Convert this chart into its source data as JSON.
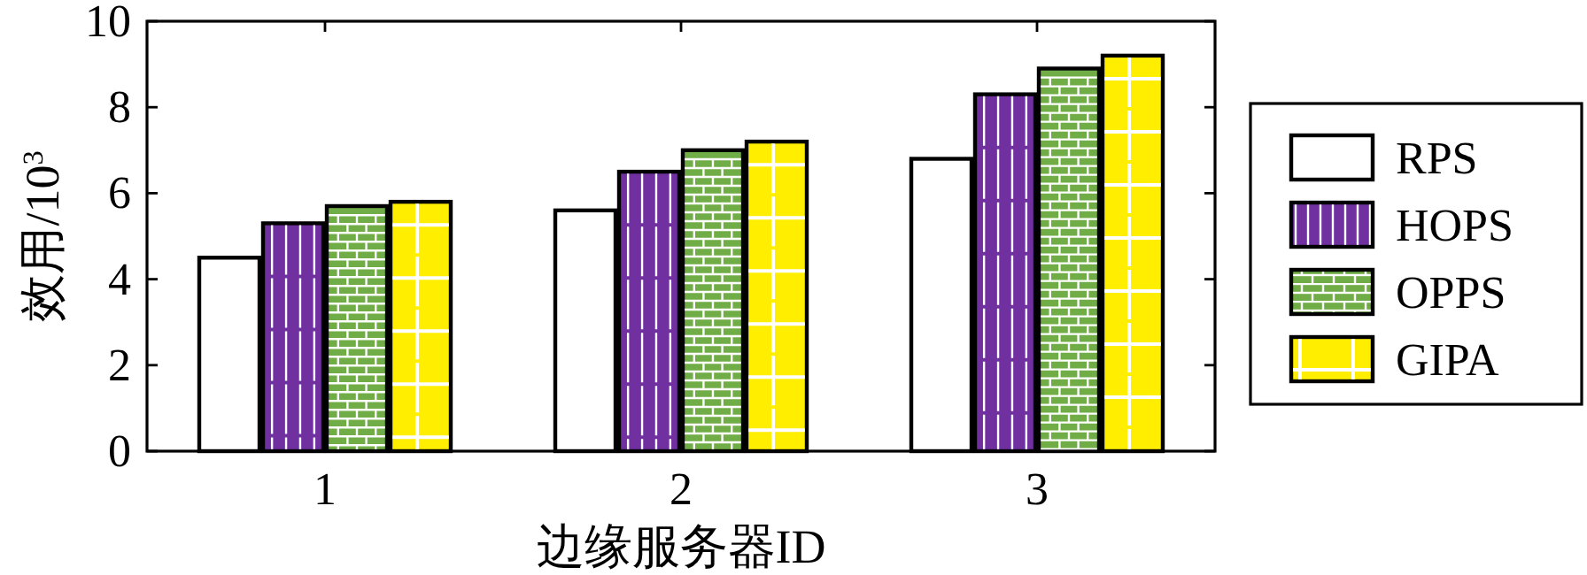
{
  "chart_data": {
    "type": "bar",
    "xlabel": "边缘服务器ID",
    "ylabel": "效用/10$^{3}$",
    "categories": [
      "1",
      "2",
      "3"
    ],
    "series": [
      {
        "name": "RPS",
        "color": "#ffffff",
        "values": [
          4.5,
          5.6,
          6.8
        ]
      },
      {
        "name": "HOPS",
        "color": "#7030a0",
        "values": [
          5.3,
          6.5,
          8.3
        ]
      },
      {
        "name": "OPPS",
        "color": "#70ad47",
        "values": [
          5.7,
          7.0,
          8.9
        ]
      },
      {
        "name": "GIPA",
        "color": "#ffee00",
        "values": [
          5.8,
          7.2,
          9.2
        ]
      }
    ],
    "ylim": [
      0,
      10
    ],
    "yticks": [
      0,
      2,
      4,
      6,
      8,
      10
    ],
    "grid": false,
    "legend": "right"
  }
}
